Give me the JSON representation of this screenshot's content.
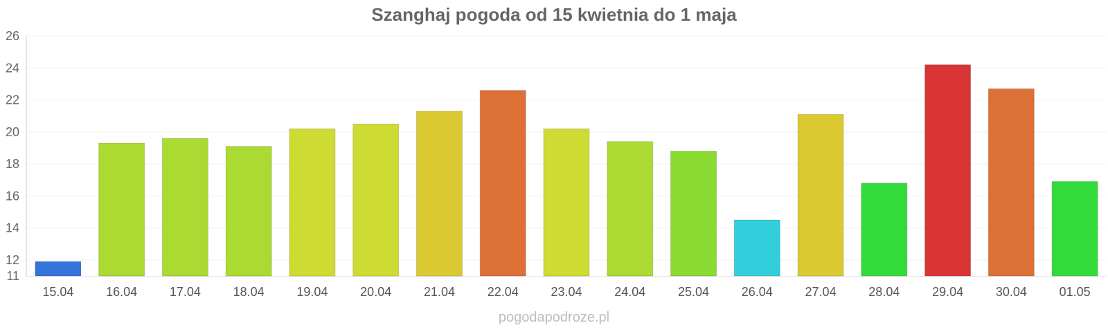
{
  "chart_data": {
    "type": "bar",
    "title": "Szanghaj pogoda od 15 kwietnia do 1 maja",
    "xlabel": "",
    "ylabel": "",
    "ylim": [
      11,
      26
    ],
    "yticks": [
      11,
      12,
      14,
      16,
      18,
      20,
      22,
      24,
      26
    ],
    "grid": true,
    "legend": "none",
    "categories": [
      "15.04",
      "16.04",
      "17.04",
      "18.04",
      "19.04",
      "20.04",
      "21.04",
      "22.04",
      "23.04",
      "24.04",
      "25.04",
      "26.04",
      "27.04",
      "28.04",
      "29.04",
      "30.04",
      "01.05"
    ],
    "values": [
      11.9,
      19.3,
      19.6,
      19.1,
      20.2,
      20.5,
      21.3,
      22.6,
      20.2,
      19.4,
      18.8,
      14.5,
      21.1,
      16.8,
      24.2,
      22.7,
      16.9
    ],
    "colors": [
      "#3274d9",
      "#abdb32",
      "#abdb32",
      "#abdb32",
      "#cedb32",
      "#cedb32",
      "#dbc932",
      "#dd7036",
      "#cedb32",
      "#abdb32",
      "#8bdb32",
      "#33cedb",
      "#dbc932",
      "#33db3a",
      "#d93434",
      "#dd7036",
      "#33db3a"
    ]
  },
  "footer": {
    "watermark": "pogodapodroze.pl"
  }
}
